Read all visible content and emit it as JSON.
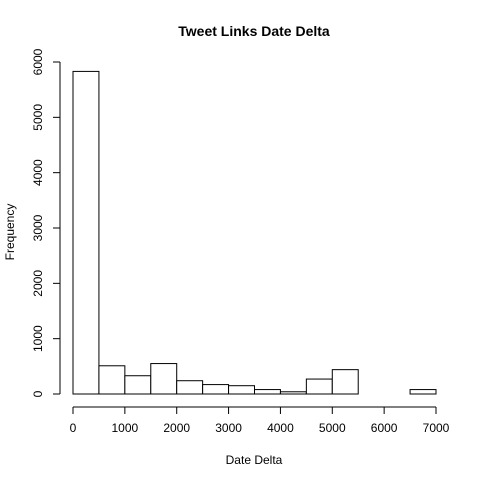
{
  "chart_data": {
    "type": "bar",
    "title": "Tweet Links Date Delta",
    "xlabel": "Date Delta",
    "ylabel": "Frequency",
    "bin_width": 500,
    "bins": [
      {
        "x0": 0,
        "x1": 500,
        "count": 5830
      },
      {
        "x0": 500,
        "x1": 1000,
        "count": 510
      },
      {
        "x0": 1000,
        "x1": 1500,
        "count": 330
      },
      {
        "x0": 1500,
        "x1": 2000,
        "count": 550
      },
      {
        "x0": 2000,
        "x1": 2500,
        "count": 240
      },
      {
        "x0": 2500,
        "x1": 3000,
        "count": 170
      },
      {
        "x0": 3000,
        "x1": 3500,
        "count": 150
      },
      {
        "x0": 3500,
        "x1": 4000,
        "count": 80
      },
      {
        "x0": 4000,
        "x1": 4500,
        "count": 40
      },
      {
        "x0": 4500,
        "x1": 5000,
        "count": 270
      },
      {
        "x0": 5000,
        "x1": 5500,
        "count": 440
      },
      {
        "x0": 5500,
        "x1": 6000,
        "count": 0
      },
      {
        "x0": 6000,
        "x1": 6500,
        "count": 0
      },
      {
        "x0": 6500,
        "x1": 7000,
        "count": 80
      }
    ],
    "xlim": [
      0,
      7000
    ],
    "ylim": [
      0,
      6000
    ],
    "x_ticks": [
      "0",
      "1000",
      "2000",
      "3000",
      "4000",
      "5000",
      "6000",
      "7000"
    ],
    "y_ticks": [
      "0",
      "1000",
      "2000",
      "3000",
      "4000",
      "5000",
      "6000"
    ],
    "grid": false,
    "colors": {
      "bar_fill": "#ffffff",
      "bar_stroke": "#000000"
    }
  }
}
